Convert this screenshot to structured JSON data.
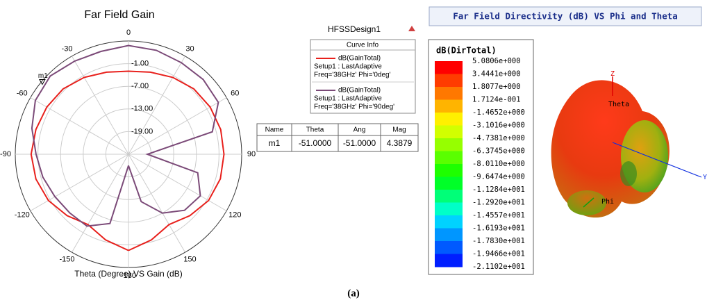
{
  "chart_data": {
    "type": "polar",
    "title": "Far Field Gain",
    "xlabel": "Theta (Degree) VS Gain (dB)",
    "angle_ticks": [
      0,
      30,
      60,
      90,
      120,
      150,
      -180,
      -150,
      -120,
      -90,
      -60,
      -30
    ],
    "rlim": [
      -25,
      5
    ],
    "rticks": [
      {
        "value": -1,
        "label": "-1.00"
      },
      {
        "value": -7,
        "label": "-7.00"
      },
      {
        "value": -13,
        "label": "-13.00"
      },
      {
        "value": -19,
        "label": "-19.00"
      }
    ],
    "theta": [
      -180,
      -165,
      -150,
      -135,
      -120,
      -105,
      -90,
      -75,
      -60,
      -45,
      -30,
      -15,
      0,
      15,
      30,
      45,
      60,
      75,
      90,
      105,
      120,
      135,
      150,
      165,
      180
    ],
    "series": [
      {
        "name": "dB(GainTotal)",
        "setup": "Setup1 : LastAdaptive",
        "freq": "Freq='38GHz' Phi='0deg'",
        "color": "#e8201c",
        "values": [
          0.5,
          -1.5,
          -3.5,
          -2,
          -0.5,
          0.4,
          0.8,
          0.4,
          0,
          -0.5,
          -1.5,
          -2.5,
          -3,
          -2.5,
          -1.5,
          -0.5,
          0,
          0.3,
          0.3,
          0.2,
          -0.5,
          -2,
          -3.5,
          -1.5,
          0.5
        ]
      },
      {
        "name": "dB(GainTotal)",
        "setup": "Setup1 : LastAdaptive",
        "freq": "Freq='38GHz' Phi='90deg'",
        "color": "#7b4a78",
        "values": [
          -22,
          -6,
          -3,
          -3,
          -2.5,
          -1.5,
          -0.5,
          1.5,
          3.5,
          4.3,
          3.5,
          3.2,
          3.8,
          3.5,
          3,
          3,
          2.5,
          -2,
          -20,
          -6,
          -3,
          -4,
          -7,
          -12,
          -22
        ]
      }
    ],
    "marker": {
      "label": "m1",
      "theta": -51,
      "value": 4.3879
    }
  },
  "design": "HFSSDesign1",
  "legend_title": "Curve Info",
  "table": {
    "header": [
      "Name",
      "Theta",
      "Ang",
      "Mag"
    ],
    "rows": [
      [
        "m1",
        "-51.0000",
        "-51.0000",
        "4.3879"
      ]
    ]
  },
  "directivity": {
    "title": "Far Field Directivity (dB) VS Phi and Theta",
    "colorbar_title": "dB(DirTotal)",
    "labels": [
      "5.0806e+000",
      "3.4441e+000",
      "1.8077e+000",
      "1.7124e-001",
      "-1.4652e+000",
      "-3.1016e+000",
      "-4.7381e+000",
      "-6.3745e+000",
      "-8.0110e+000",
      "-9.6474e+000",
      "-1.1284e+001",
      "-1.2920e+001",
      "-1.4557e+001",
      "-1.6193e+001",
      "-1.7830e+001",
      "-1.9466e+001",
      "-2.1102e+001"
    ],
    "colors": [
      "#ff0000",
      "#ff3c00",
      "#ff7800",
      "#ffb400",
      "#fff000",
      "#d2ff00",
      "#96ff00",
      "#5aff00",
      "#1eff00",
      "#00ff28",
      "#00ff78",
      "#00ffc8",
      "#00d2ff",
      "#0096ff",
      "#005aff",
      "#001eff"
    ],
    "axes": {
      "z": "Z",
      "theta": "Theta",
      "phi": "Phi",
      "y": "Y"
    }
  },
  "caption": "(a)"
}
